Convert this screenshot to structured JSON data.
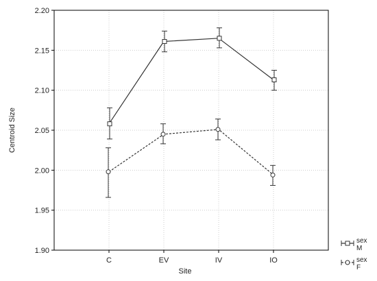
{
  "chart_data": {
    "type": "line",
    "title": "",
    "xlabel": "Site",
    "ylabel": "Centroid Size",
    "categories": [
      "C",
      "EV",
      "IV",
      "IO"
    ],
    "ylim": [
      1.9,
      2.2
    ],
    "yticks": [
      "1.90",
      "1.95",
      "2.00",
      "2.05",
      "2.10",
      "2.15",
      "2.20"
    ],
    "grid": true,
    "legend_position": "bottom-right",
    "series": [
      {
        "name_lines": [
          "sex",
          "M"
        ],
        "line_style": "solid",
        "marker": "square",
        "values": [
          2.058,
          2.161,
          2.165,
          2.113
        ],
        "lower": [
          2.039,
          2.148,
          2.153,
          2.1
        ],
        "upper": [
          2.078,
          2.174,
          2.178,
          2.125
        ]
      },
      {
        "name_lines": [
          "sex",
          "F"
        ],
        "line_style": "dashed",
        "marker": "circle",
        "values": [
          1.998,
          2.045,
          2.051,
          1.994
        ],
        "lower": [
          1.966,
          2.033,
          2.038,
          1.981
        ],
        "upper": [
          2.028,
          2.058,
          2.064,
          2.006
        ]
      }
    ]
  }
}
